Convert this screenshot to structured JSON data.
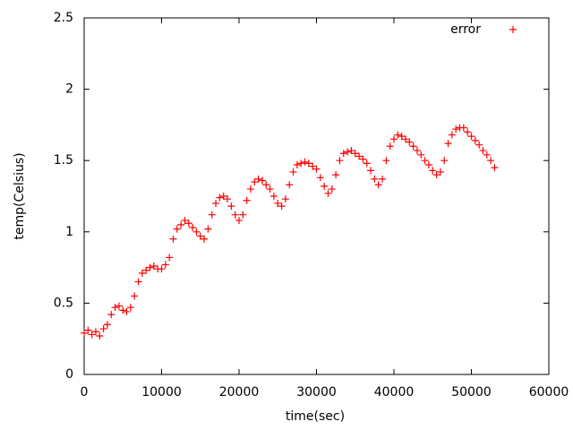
{
  "chart_data": {
    "type": "scatter",
    "xlabel": "time(sec)",
    "ylabel": "temp(Celsius)",
    "xlim": [
      0,
      60000
    ],
    "ylim": [
      0,
      2.5
    ],
    "xticks": [
      0,
      10000,
      20000,
      30000,
      40000,
      50000,
      60000
    ],
    "yticks": [
      0,
      0.5,
      1,
      1.5,
      2,
      2.5
    ],
    "legend_position": "top-right",
    "series": [
      {
        "name": "error",
        "color": "#ff0000",
        "x": [
          0,
          500,
          1000,
          1500,
          2000,
          2500,
          3000,
          3500,
          4000,
          4500,
          5000,
          5500,
          6000,
          6500,
          7000,
          7500,
          8000,
          8500,
          9000,
          9500,
          10000,
          10500,
          11000,
          11500,
          12000,
          12500,
          13000,
          13500,
          14000,
          14500,
          15000,
          15500,
          16000,
          16500,
          17000,
          17500,
          18000,
          18500,
          19000,
          19500,
          20000,
          20500,
          21000,
          21500,
          22000,
          22500,
          23000,
          23500,
          24000,
          24500,
          25000,
          25500,
          26000,
          26500,
          27000,
          27500,
          28000,
          28500,
          29000,
          29500,
          30000,
          30500,
          31000,
          31500,
          32000,
          32500,
          33000,
          33500,
          34000,
          34500,
          35000,
          35500,
          36000,
          36500,
          37000,
          37500,
          38000,
          38500,
          39000,
          39500,
          40000,
          40500,
          41000,
          41500,
          42000,
          42500,
          43000,
          43500,
          44000,
          44500,
          45000,
          45500,
          46000,
          46500,
          47000,
          47500,
          48000,
          48500,
          49000,
          49500,
          50000,
          50500,
          51000,
          51500,
          52000,
          52500,
          53000
        ],
        "values": [
          0.29,
          0.31,
          0.28,
          0.3,
          0.27,
          0.32,
          0.35,
          0.42,
          0.47,
          0.48,
          0.45,
          0.44,
          0.47,
          0.55,
          0.65,
          0.71,
          0.73,
          0.75,
          0.76,
          0.74,
          0.74,
          0.77,
          0.82,
          0.95,
          1.02,
          1.05,
          1.08,
          1.06,
          1.03,
          1.0,
          0.97,
          0.95,
          1.02,
          1.12,
          1.2,
          1.24,
          1.25,
          1.23,
          1.18,
          1.12,
          1.08,
          1.12,
          1.22,
          1.3,
          1.35,
          1.37,
          1.36,
          1.33,
          1.3,
          1.25,
          1.2,
          1.18,
          1.23,
          1.33,
          1.42,
          1.47,
          1.48,
          1.49,
          1.48,
          1.46,
          1.44,
          1.38,
          1.32,
          1.27,
          1.3,
          1.4,
          1.5,
          1.55,
          1.56,
          1.57,
          1.55,
          1.53,
          1.51,
          1.48,
          1.43,
          1.37,
          1.33,
          1.37,
          1.5,
          1.6,
          1.65,
          1.68,
          1.67,
          1.65,
          1.63,
          1.6,
          1.57,
          1.54,
          1.5,
          1.47,
          1.43,
          1.4,
          1.42,
          1.5,
          1.62,
          1.68,
          1.72,
          1.73,
          1.73,
          1.7,
          1.67,
          1.64,
          1.61,
          1.57,
          1.54,
          1.5,
          1.45
        ]
      }
    ]
  }
}
